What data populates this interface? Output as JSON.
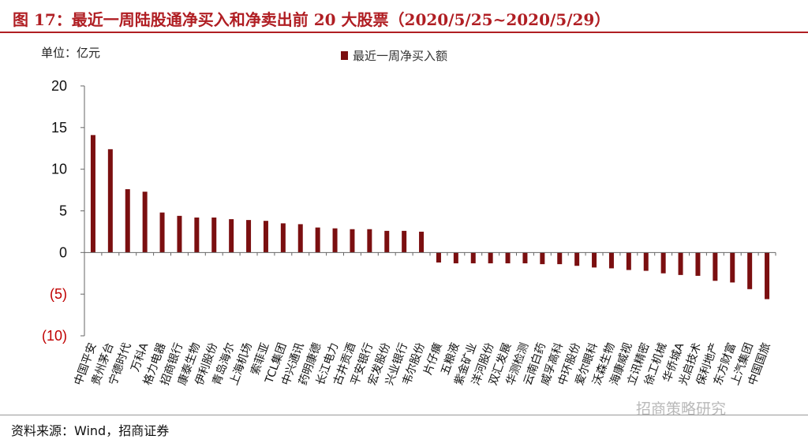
{
  "header": {
    "title": "图 17：最近一周陆股通净买入和净卖出前 20 大股票（2020/5/25~2020/5/29）",
    "unit": "单位：亿元"
  },
  "footer": {
    "source": "资料来源：Wind，招商证券",
    "watermark": "招商策略研究"
  },
  "colors": {
    "bar": "#7b0f10",
    "title": "#b01e23",
    "negative_tick": "#c00000"
  },
  "chart_data": {
    "type": "bar",
    "title": "",
    "xlabel": "",
    "ylabel": "单位：亿元",
    "legend": [
      "最近一周净买入额"
    ],
    "legend_position": "top",
    "ylim": [
      -10,
      20
    ],
    "yticks": [
      "(10)",
      "(5)",
      "0",
      "5",
      "10",
      "15",
      "20"
    ],
    "ytick_values": [
      -10,
      -5,
      0,
      5,
      10,
      15,
      20
    ],
    "grid": false,
    "categories": [
      "中国平安",
      "贵州茅台",
      "宁德时代",
      "万科A",
      "格力电器",
      "招商银行",
      "康泰生物",
      "伊利股份",
      "青岛海尔",
      "上海机场",
      "索菲亚",
      "TCL集团",
      "中兴通讯",
      "药明康德",
      "长江电力",
      "古井贡酒",
      "平安银行",
      "宏发股份",
      "兴业银行",
      "韦尔股份",
      "片仔癀",
      "五粮液",
      "紫金矿业",
      "洋河股份",
      "双汇发展",
      "华测检测",
      "云南白药",
      "威孚高科",
      "中环股份",
      "爱尔眼科",
      "沃森生物",
      "海康威视",
      "立讯精密",
      "徐工机械",
      "华侨城A",
      "光启技术",
      "保利地产",
      "东方财富",
      "上汽集团",
      "中国国旅"
    ],
    "series": [
      {
        "name": "最近一周净买入额",
        "values": [
          14.1,
          12.4,
          7.6,
          7.3,
          4.8,
          4.4,
          4.2,
          4.2,
          4.0,
          3.9,
          3.8,
          3.5,
          3.4,
          3.0,
          2.9,
          2.8,
          2.8,
          2.6,
          2.6,
          2.5,
          -1.2,
          -1.3,
          -1.3,
          -1.3,
          -1.3,
          -1.3,
          -1.4,
          -1.4,
          -1.6,
          -1.8,
          -1.9,
          -2.1,
          -2.2,
          -2.5,
          -2.7,
          -2.8,
          -3.4,
          -3.6,
          -4.4,
          -5.6
        ]
      }
    ]
  }
}
